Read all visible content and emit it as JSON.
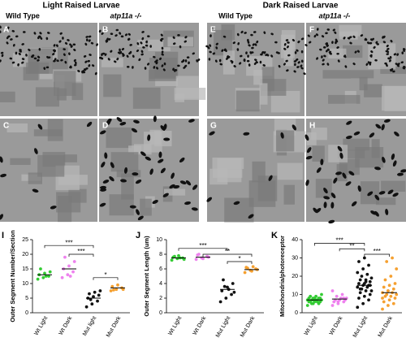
{
  "figure": {
    "headers": [
      "Light Raised Larvae",
      "Dark Raised Larvae"
    ],
    "column_labels": [
      "Wild Type",
      "atp11a -/-",
      "Wild Type",
      "atp11a -/-"
    ],
    "panels": [
      "A",
      "B",
      "C",
      "D",
      "E",
      "F",
      "G",
      "H"
    ]
  },
  "chart_data": [
    {
      "type": "strip",
      "letter": "I",
      "y_label": "Outer Segment Number/Section",
      "categories": [
        "Wt Light",
        "Wt Dark",
        "Mut light",
        "Mut Dark"
      ],
      "colors": [
        "#33cc33",
        "#ee82ee",
        "#111111",
        "#f5a030"
      ],
      "values": [
        [
          11.5,
          12,
          12.5,
          13,
          13.5,
          14,
          15,
          12.5
        ],
        [
          12,
          13,
          14,
          15,
          16,
          17.5,
          19,
          12.5
        ],
        [
          2,
          3,
          4,
          5,
          5.5,
          6,
          6.5,
          7,
          7.5,
          4.5
        ],
        [
          7.5,
          8,
          8.5,
          9,
          9.5,
          8,
          7.8
        ]
      ],
      "means": [
        13,
        15,
        5,
        8.5
      ],
      "ylim": [
        0,
        25
      ],
      "yticks": [
        0,
        5,
        10,
        15,
        20,
        25
      ],
      "annotations": [
        {
          "text": "***",
          "from": 0,
          "to": 2,
          "y": 23
        },
        {
          "text": "***",
          "from": 1,
          "to": 2,
          "y": 20
        },
        {
          "text": "*",
          "from": 2,
          "to": 3,
          "y": 12
        }
      ]
    },
    {
      "type": "strip",
      "letter": "J",
      "y_label": "Outer Segment Length (um)",
      "categories": [
        "Wt Light",
        "Wt Dark",
        "Mut Light",
        "Mut Dark"
      ],
      "colors": [
        "#33cc33",
        "#ee82ee",
        "#111111",
        "#f5a030"
      ],
      "values": [
        [
          7.2,
          7.4,
          7.5,
          7.6,
          7.8,
          7.3,
          7.7,
          7.5
        ],
        [
          7.3,
          7.5,
          7.7,
          7.9,
          7.4,
          7.6,
          8.0
        ],
        [
          1.5,
          2,
          2.5,
          3,
          3.5,
          4,
          4.5,
          3.2,
          2.8,
          3.6
        ],
        [
          5.5,
          5.8,
          6,
          6.2,
          5.7,
          5.9,
          6.1,
          6.3
        ]
      ],
      "means": [
        7.5,
        7.6,
        3.2,
        5.9
      ],
      "ylim": [
        0,
        10
      ],
      "yticks": [
        0,
        2,
        4,
        6,
        8,
        10
      ],
      "annotations": [
        {
          "text": "***",
          "from": 0,
          "to": 2,
          "y": 8.8
        },
        {
          "text": "**",
          "from": 1,
          "to": 3,
          "y": 8.0
        },
        {
          "text": "*",
          "from": 2,
          "to": 3,
          "y": 7.0
        }
      ]
    },
    {
      "type": "strip",
      "letter": "K",
      "y_label": "Mitochondria/photoreceptor",
      "categories": [
        "Wt Light",
        "Wt Dark",
        "Mut Light",
        "Mut Dark"
      ],
      "colors": [
        "#33cc33",
        "#ee82ee",
        "#111111",
        "#f5a030"
      ],
      "values": [
        [
          4,
          5,
          5,
          6,
          6,
          6,
          6,
          7,
          7,
          7,
          7,
          7,
          7,
          8,
          8,
          8,
          8,
          9,
          9,
          10,
          5,
          6,
          7,
          8
        ],
        [
          4,
          5,
          6,
          6,
          7,
          7,
          7,
          8,
          8,
          9,
          10,
          12,
          6,
          8
        ],
        [
          3,
          5,
          7,
          8,
          9,
          10,
          11,
          12,
          12,
          13,
          14,
          14,
          15,
          15,
          16,
          16,
          17,
          18,
          18,
          19,
          20,
          21,
          22,
          24,
          26,
          28,
          30,
          15,
          13,
          17
        ],
        [
          2,
          4,
          5,
          6,
          7,
          8,
          9,
          9,
          10,
          10,
          11,
          11,
          12,
          13,
          14,
          15,
          16,
          18,
          20,
          24,
          28,
          30,
          8,
          12
        ]
      ],
      "means": [
        7,
        7.5,
        15,
        11
      ],
      "ylim": [
        0,
        40
      ],
      "yticks": [
        0,
        10,
        20,
        30,
        40
      ],
      "annotations": [
        {
          "text": "***",
          "from": 0,
          "to": 2,
          "y": 38
        },
        {
          "text": "**",
          "from": 1,
          "to": 2,
          "y": 35
        },
        {
          "text": "***",
          "from": 2,
          "to": 3,
          "y": 32
        }
      ]
    }
  ]
}
